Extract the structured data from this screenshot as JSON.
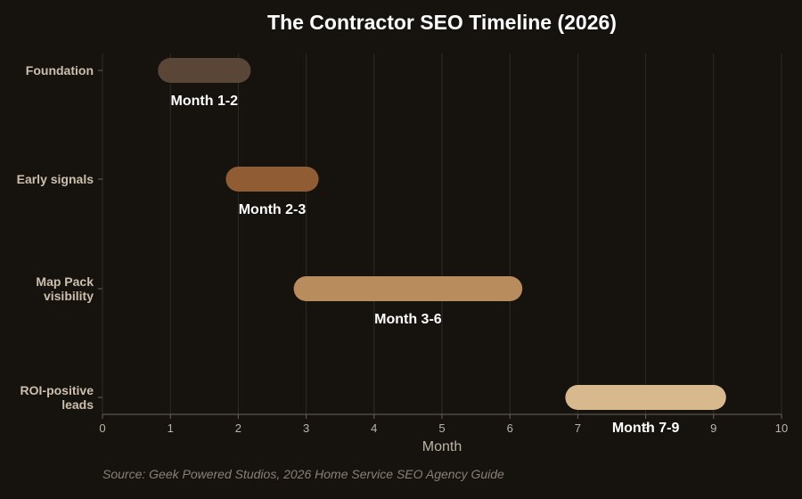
{
  "chart_data": {
    "type": "bar",
    "orientation": "horizontal-range",
    "title": "The Contractor SEO Timeline (2026)",
    "xlabel": "Month",
    "ylabel": "",
    "xlim": [
      0,
      10
    ],
    "x_ticks": [
      0,
      1,
      2,
      3,
      4,
      5,
      6,
      7,
      8,
      9,
      10
    ],
    "grid": true,
    "categories": [
      [
        "Foundation"
      ],
      [
        "Early signals"
      ],
      [
        "Map Pack",
        "visibility"
      ],
      [
        "ROI-positive",
        "leads"
      ]
    ],
    "series": [
      {
        "values": [
          {
            "start": 1,
            "end": 2,
            "label": "Month 1-2",
            "color": "#5a4637"
          },
          {
            "start": 2,
            "end": 3,
            "label": "Month 2-3",
            "color": "#8f5c33"
          },
          {
            "start": 3,
            "end": 6,
            "label": "Month 3-6",
            "color": "#b88c5c"
          },
          {
            "start": 7,
            "end": 9,
            "label": "Month 7-9",
            "color": "#d8b88d"
          }
        ]
      }
    ]
  },
  "source": "Source: Geek Powered Studios, 2026 Home Service SEO Agency Guide",
  "colors": {
    "background": "#16130f",
    "grid": "#2e2a25",
    "axis": "#6b6259"
  }
}
